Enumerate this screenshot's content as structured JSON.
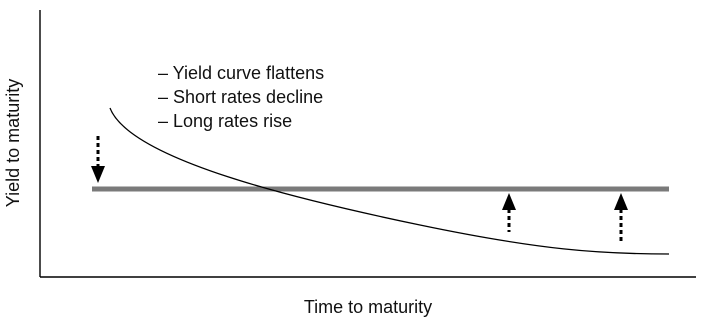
{
  "diagram": {
    "y_axis_label": "Yield to maturity",
    "x_axis_label": "Time to maturity",
    "notes": [
      "– Yield curve flattens",
      "– Short rates decline",
      "– Long rates rise"
    ],
    "colors": {
      "axis": "#000000",
      "curve": "#000000",
      "flat_line": "#7a7a7a",
      "arrows": "#000000",
      "text": "#111111"
    },
    "arrows": [
      {
        "name": "short-rates-decline-arrow",
        "direction": "down"
      },
      {
        "name": "long-rates-rise-arrow-1",
        "direction": "up"
      },
      {
        "name": "long-rates-rise-arrow-2",
        "direction": "up"
      }
    ]
  }
}
